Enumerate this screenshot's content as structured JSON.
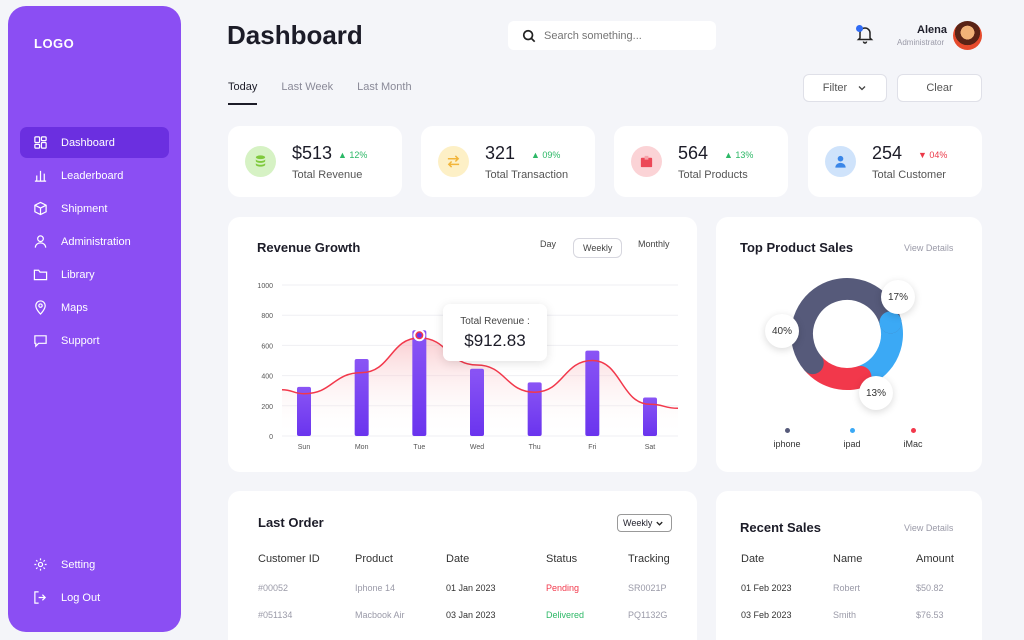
{
  "sidebar": {
    "logo": "LOGO",
    "items": [
      {
        "label": "Dashboard",
        "icon": "grid-icon",
        "active": true
      },
      {
        "label": "Leaderboard",
        "icon": "bar-chart-icon"
      },
      {
        "label": "Shipment",
        "icon": "box-icon"
      },
      {
        "label": "Administration",
        "icon": "user-icon"
      },
      {
        "label": "Library",
        "icon": "folder-icon"
      },
      {
        "label": "Maps",
        "icon": "map-pin-icon"
      },
      {
        "label": "Support",
        "icon": "chat-icon"
      }
    ],
    "bottom": [
      {
        "label": "Setting",
        "icon": "gear-icon"
      },
      {
        "label": "Log Out",
        "icon": "logout-icon"
      }
    ]
  },
  "header": {
    "title": "Dashboard",
    "search_placeholder": "Search something...",
    "user_name": "Alena",
    "user_role": "Administrator"
  },
  "tabs": [
    "Today",
    "Last Week",
    "Last Month"
  ],
  "buttons": {
    "filter": "Filter",
    "clear": "Clear"
  },
  "stats": [
    {
      "value": "$513",
      "change": "12%",
      "direction": "up",
      "label": "Total Revenue",
      "color": "#d6f2c4",
      "icon_color": "#7fc93c"
    },
    {
      "value": "321",
      "change": "09%",
      "direction": "up",
      "label": "Total Transaction",
      "color": "#fdf0c6",
      "icon_color": "#f2b53a"
    },
    {
      "value": "564",
      "change": "13%",
      "direction": "up",
      "label": "Total Products",
      "color": "#fbd3d6",
      "icon_color": "#ec4857"
    },
    {
      "value": "254",
      "change": "04%",
      "direction": "down",
      "label": "Total Customer",
      "color": "#cfe3fb",
      "icon_color": "#3a86e8"
    }
  ],
  "revenue": {
    "title": "Revenue Growth",
    "periods": [
      "Day",
      "Weekly",
      "Monthly"
    ],
    "active_period": "Weekly",
    "tooltip_label": "Total Revenue :",
    "tooltip_value": "$912.83"
  },
  "chart_data": {
    "type": "bar",
    "title": "Revenue Growth",
    "categories": [
      "Sun",
      "Mon",
      "Tue",
      "Wed",
      "Thu",
      "Fri",
      "Sat"
    ],
    "values": [
      325,
      510,
      700,
      445,
      355,
      565,
      255
    ],
    "line": [
      280,
      420,
      650,
      470,
      290,
      500,
      210
    ],
    "yticks": [
      0,
      200,
      400,
      600,
      800,
      1000
    ],
    "ylim": [
      0,
      1000
    ],
    "highlight_index": 2
  },
  "top_products": {
    "title": "Top Product Sales",
    "view_details": "View Details",
    "slices": [
      {
        "name": "iphone",
        "value": 40,
        "label": "40%",
        "color": "#565a7a"
      },
      {
        "name": "ipad",
        "value": 17,
        "label": "17%",
        "color": "#3ba9f5"
      },
      {
        "name": "iMac",
        "value": 13,
        "label": "13%",
        "color": "#f2384b"
      }
    ]
  },
  "last_order": {
    "title": "Last Order",
    "select": "Weekly",
    "columns": [
      "Customer ID",
      "Product",
      "Date",
      "Status",
      "Tracking"
    ],
    "rows": [
      {
        "id": "#00052",
        "product": "Iphone 14",
        "date": "01 Jan 2023",
        "status": "Pending",
        "tracking": "SR0021P"
      },
      {
        "id": "#051134",
        "product": "Macbook Air",
        "date": "03 Jan 2023",
        "status": "Delivered",
        "tracking": "PQ1132G"
      }
    ],
    "status_colors": {
      "Pending": "#f2384b",
      "Delivered": "#2cb866"
    }
  },
  "recent_sales": {
    "title": "Recent Sales",
    "view_details": "View Details",
    "columns": [
      "Date",
      "Name",
      "Amount"
    ],
    "rows": [
      {
        "date": "01 Feb 2023",
        "name": "Robert",
        "amount": "$50.82"
      },
      {
        "date": "03 Feb 2023",
        "name": "Smith",
        "amount": "$76.53"
      }
    ]
  }
}
